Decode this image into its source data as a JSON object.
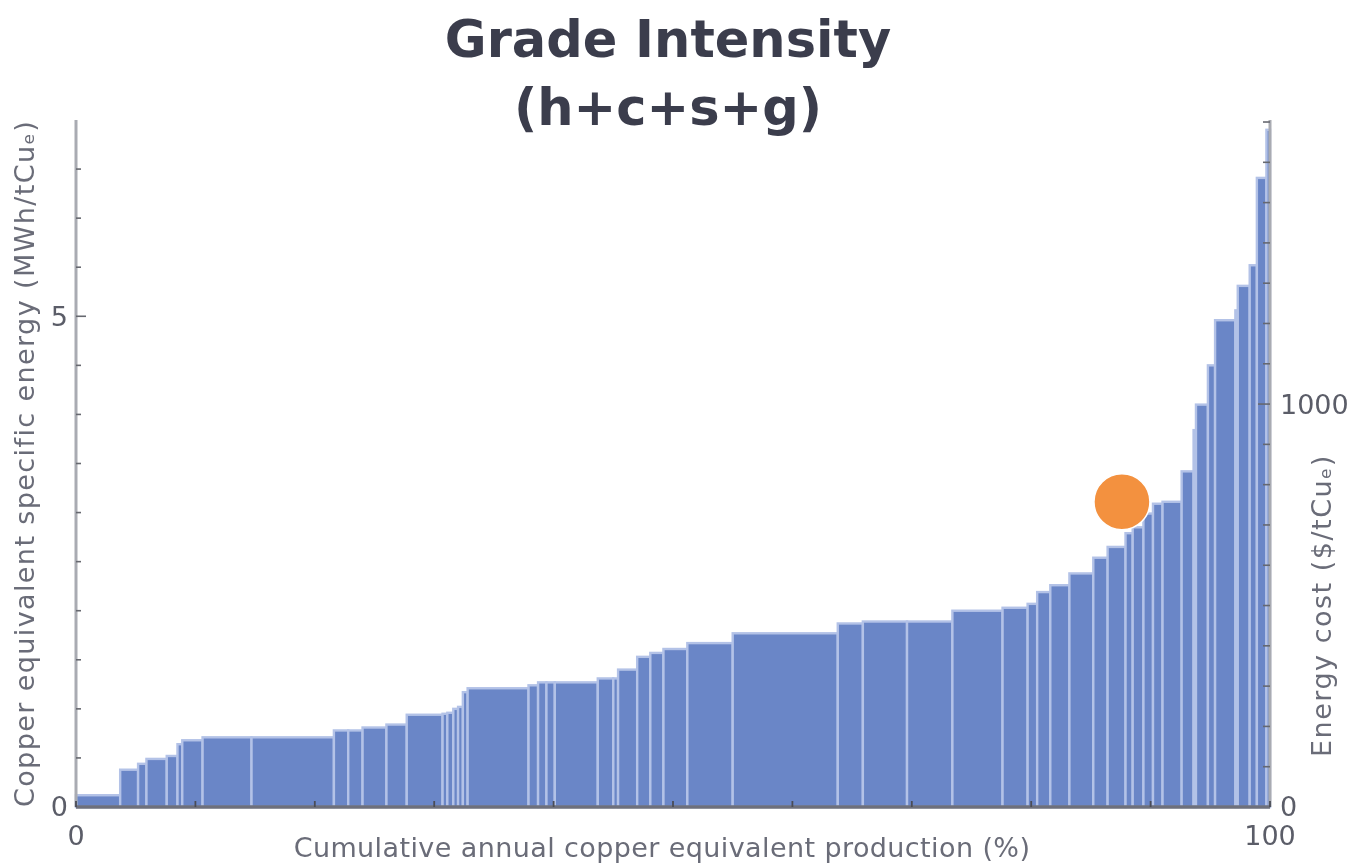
{
  "chart_data": {
    "type": "histogram",
    "title": "Grade Intensity",
    "subtitle": "(h+c+s+g)",
    "xlabel": "Cumulative annual copper equivalent production (%)",
    "ylabel": "Copper equivalent specific energy (MWh/tCuₑ)",
    "y2label": "Energy cost ($/tCuₑ)",
    "xlim": [
      0,
      100
    ],
    "xticks": [
      0,
      {
        "value": 10,
        "label": null
      },
      {
        "value": 20,
        "label": null
      },
      {
        "value": 30,
        "label": null
      },
      {
        "value": 40,
        "label": null
      },
      {
        "value": 50,
        "label": null
      },
      {
        "value": 60,
        "label": null
      },
      {
        "value": 70,
        "label": null
      },
      {
        "value": 80,
        "label": null
      },
      {
        "value": 90,
        "label": null
      },
      100
    ],
    "ylim": [
      0,
      7
    ],
    "yticks": [
      0,
      {
        "value": 0.5,
        "label": null
      },
      {
        "value": 1,
        "label": null
      },
      {
        "value": 1.5,
        "label": null
      },
      {
        "value": 2,
        "label": null
      },
      {
        "value": 2.5,
        "label": null
      },
      {
        "value": 3,
        "label": null
      },
      {
        "value": 3.5,
        "label": null
      },
      {
        "value": 4,
        "label": null
      },
      {
        "value": 4.5,
        "label": null
      },
      5,
      {
        "value": 5.5,
        "label": null
      },
      {
        "value": 6,
        "label": null
      },
      {
        "value": 6.5,
        "label": null
      }
    ],
    "y2lim": [
      0,
      1705
    ],
    "y2ticks": [
      0,
      {
        "value": 100,
        "label": null
      },
      {
        "value": 200,
        "label": null
      },
      {
        "value": 300,
        "label": null
      },
      {
        "value": 400,
        "label": null
      },
      {
        "value": 500,
        "label": null
      },
      {
        "value": 600,
        "label": null
      },
      {
        "value": 700,
        "label": null
      },
      {
        "value": 800,
        "label": null
      },
      {
        "value": 900,
        "label": null
      },
      1000,
      {
        "value": 1100,
        "label": null
      },
      {
        "value": 1200,
        "label": null
      },
      {
        "value": 1300,
        "label": null
      },
      {
        "value": 1400,
        "label": null
      },
      {
        "value": 1500,
        "label": null
      },
      {
        "value": 1600,
        "label": null
      },
      {
        "value": 1700,
        "label": null
      }
    ],
    "marker": "circle",
    "series": [
      {
        "type": "histogram",
        "color": "#6a86c7",
        "bins": [
          0,
          3.7,
          5.2,
          5.9,
          7.6,
          8.5,
          8.9,
          10.6,
          14.7,
          21.6,
          22.8,
          24.0,
          26.0,
          27.7,
          30.7,
          31.1,
          31.6,
          32.0,
          32.4,
          32.8,
          37.9,
          38.7,
          39.4,
          40.1,
          43.7,
          45.0,
          45.4,
          47.0,
          48.1,
          49.2,
          51.2,
          55.0,
          63.8,
          65.9,
          69.6,
          73.4,
          77.6,
          79.7,
          80.5,
          81.6,
          83.2,
          85.2,
          86.4,
          87.9,
          88.5,
          89.4,
          90.2,
          91.0,
          92.6,
          93.6,
          93.8,
          94.8,
          95.4,
          97.1,
          97.3,
          98.3,
          98.9,
          99.7,
          100
        ],
        "values": [
          0.12,
          0.38,
          0.44,
          0.49,
          0.52,
          0.64,
          0.68,
          0.71,
          0.71,
          0.78,
          0.78,
          0.81,
          0.84,
          0.94,
          0.95,
          0.96,
          1.0,
          1.02,
          1.17,
          1.21,
          1.24,
          1.27,
          1.27,
          1.27,
          1.31,
          1.31,
          1.4,
          1.53,
          1.57,
          1.61,
          1.67,
          1.77,
          1.87,
          1.89,
          1.89,
          2.0,
          2.03,
          2.07,
          2.19,
          2.26,
          2.38,
          2.54,
          2.65,
          2.79,
          2.85,
          2.99,
          3.09,
          3.11,
          3.42,
          3.84,
          4.1,
          4.5,
          4.96,
          5.06,
          5.31,
          5.52,
          6.41,
          6.9
        ]
      },
      {
        "type": "scatter",
        "color": "#f3913f",
        "x": [
          87.6
        ],
        "values": [
          3.11
        ]
      }
    ]
  }
}
